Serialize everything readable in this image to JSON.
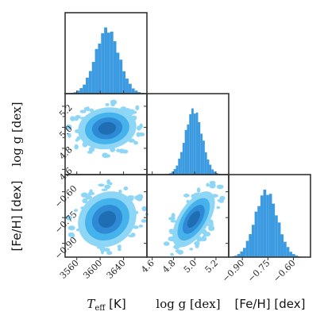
{
  "chart_data": {
    "type": "corner",
    "parameters": [
      {
        "label": "T",
        "label_sub": "eff",
        "label_unit": " [K]",
        "range": [
          3540,
          3680
        ],
        "ticks": [
          "3560",
          "3600",
          "3640"
        ]
      },
      {
        "label": "log g",
        "label_sub": "",
        "label_unit": " [dex]",
        "range": [
          4.55,
          5.32
        ],
        "ticks": [
          "4.6",
          "4.8",
          "5.0",
          "5.2"
        ]
      },
      {
        "label": "[Fe/H]",
        "label_sub": "",
        "label_unit": " [dex]",
        "range": [
          -0.98,
          -0.5
        ],
        "ticks": [
          "−0.90",
          "−0.75",
          "−0.60"
        ]
      }
    ],
    "marginals": [
      {
        "param": "T",
        "mean": 3612,
        "sd": 20,
        "peak_x": 3612
      },
      {
        "param": "log g",
        "mean": 4.99,
        "sd": 0.08,
        "peak_x": 4.99
      },
      {
        "param": "[Fe/H]",
        "mean": -0.76,
        "sd": 0.065,
        "peak_x": -0.76
      }
    ],
    "joint": [
      {
        "x": "T",
        "y": "log g",
        "center": [
          3612,
          4.99
        ],
        "sd": [
          20,
          0.08
        ],
        "correlation": 0.1
      },
      {
        "x": "T",
        "y": "[Fe/H]",
        "center": [
          3612,
          -0.76
        ],
        "sd": [
          20,
          0.065
        ],
        "correlation": 0.15
      },
      {
        "x": "log g",
        "y": "[Fe/H]",
        "center": [
          4.99,
          -0.76
        ],
        "sd": [
          0.08,
          0.065
        ],
        "correlation": 0.6
      }
    ],
    "colors": {
      "hist": "#3c9be0",
      "c1": "#8ed6f5",
      "c2": "#45b2ec",
      "c3": "#2e8ad4",
      "c4": "#1f6eb4",
      "frame": "#333333"
    }
  },
  "axis_labels": {
    "x1_main": "T",
    "x1_sub": "eff",
    "x1_unit": " [K]",
    "x2": "log g [dex]",
    "x3": "[Fe/H] [dex]",
    "y2_main": "log g [dex]",
    "y3": "[Fe/H] [dex]"
  }
}
